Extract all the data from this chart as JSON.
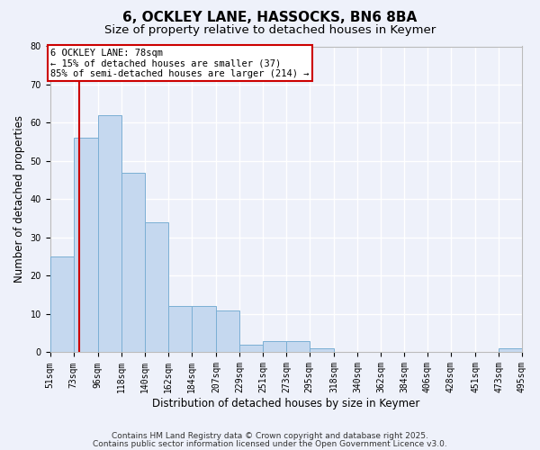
{
  "title": "6, OCKLEY LANE, HASSOCKS, BN6 8BA",
  "subtitle": "Size of property relative to detached houses in Keymer",
  "xlabel": "Distribution of detached houses by size in Keymer",
  "ylabel": "Number of detached properties",
  "bins": [
    51,
    73,
    96,
    118,
    140,
    162,
    184,
    207,
    229,
    251,
    273,
    295,
    318,
    340,
    362,
    384,
    406,
    428,
    451,
    473,
    495
  ],
  "values": [
    25,
    56,
    62,
    47,
    34,
    12,
    12,
    11,
    2,
    3,
    3,
    1,
    0,
    0,
    0,
    0,
    0,
    0,
    0,
    1,
    0
  ],
  "bar_color": "#c5d8ef",
  "bar_edge_color": "#7bafd4",
  "red_line_x": 78,
  "ylim": [
    0,
    80
  ],
  "yticks": [
    0,
    10,
    20,
    30,
    40,
    50,
    60,
    70,
    80
  ],
  "annotation_text": "6 OCKLEY LANE: 78sqm\n← 15% of detached houses are smaller (37)\n85% of semi-detached houses are larger (214) →",
  "annotation_box_color": "#ffffff",
  "annotation_box_edge": "#cc0000",
  "footer1": "Contains HM Land Registry data © Crown copyright and database right 2025.",
  "footer2": "Contains public sector information licensed under the Open Government Licence v3.0.",
  "background_color": "#eef1fa",
  "grid_color": "#ffffff",
  "title_fontsize": 11,
  "subtitle_fontsize": 9.5,
  "tick_label_fontsize": 7,
  "axis_label_fontsize": 8.5,
  "footer_fontsize": 6.5
}
